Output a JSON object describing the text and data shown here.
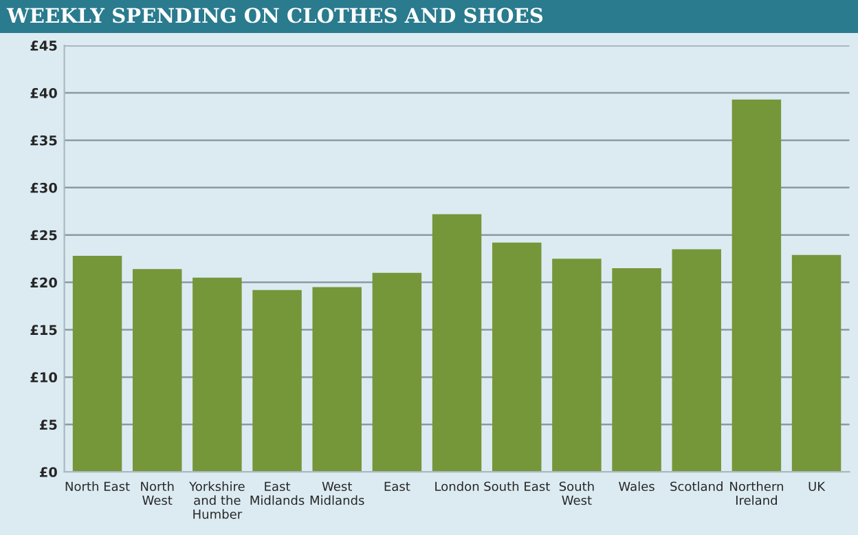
{
  "chart_data": {
    "type": "bar",
    "title": "WEEKLY SPENDING ON CLOTHES AND SHOES",
    "categories": [
      "North East",
      "North\nWest",
      "Yorkshire\nand the\nHumber",
      "East\nMidlands",
      "West\nMidlands",
      "East",
      "London",
      "South East",
      "South\nWest",
      "Wales",
      "Scotland",
      "Northern\nIreland",
      "UK"
    ],
    "values": [
      22.8,
      21.4,
      20.5,
      19.2,
      19.5,
      21.0,
      27.2,
      24.2,
      22.5,
      21.5,
      23.5,
      39.3,
      22.9
    ],
    "color": "#76963a",
    "ylim": [
      0,
      45
    ],
    "yticks": [
      {
        "value": 0,
        "label": "£0"
      },
      {
        "value": 5,
        "label": "£5"
      },
      {
        "value": 10,
        "label": "£10"
      },
      {
        "value": 15,
        "label": "£15"
      },
      {
        "value": 20,
        "label": "£20"
      },
      {
        "value": 25,
        "label": "£25"
      },
      {
        "value": 30,
        "label": "£30"
      },
      {
        "value": 35,
        "label": "£35"
      },
      {
        "value": 40,
        "label": "£40"
      },
      {
        "value": 45,
        "label": "£45"
      }
    ],
    "grid": "y"
  }
}
